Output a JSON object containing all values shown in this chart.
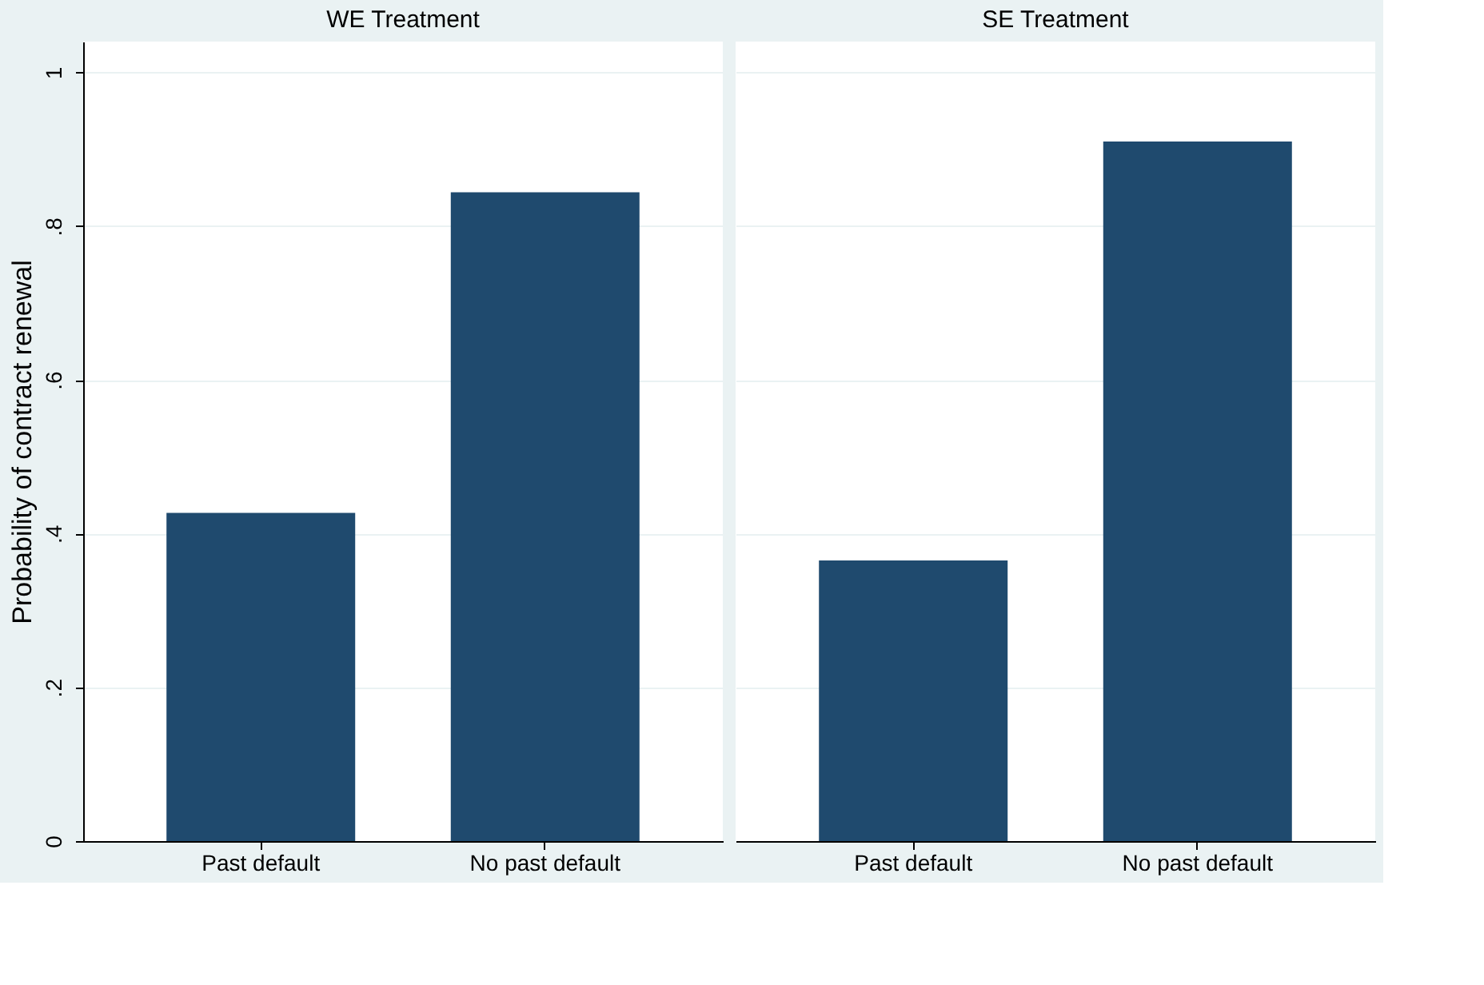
{
  "chart_data": [
    {
      "type": "bar",
      "title": "WE Treatment",
      "ylabel": "Probability of contract renewal",
      "categories": [
        "Past default",
        "No past default"
      ],
      "values": [
        0.427,
        0.844
      ],
      "color": "#1f4a6e",
      "ylim": [
        0,
        1.04
      ],
      "yticks": [
        0,
        {
          "value": 0.2,
          "label": ".2"
        },
        {
          "value": 0.4,
          "label": ".4"
        },
        {
          "value": 0.6,
          "label": ".6"
        },
        {
          "value": 0.8,
          "label": ".8"
        },
        1
      ],
      "grid": "y"
    },
    {
      "type": "bar",
      "title": "SE Treatment",
      "categories": [
        "Past default",
        "No past default"
      ],
      "values": [
        0.365,
        0.91
      ],
      "color": "#1f4a6e",
      "ylim": [
        0,
        1.04
      ],
      "yticks": [
        {
          "value": 0,
          "label": null
        },
        {
          "value": 0.2,
          "label": null
        },
        {
          "value": 0.4,
          "label": null
        },
        {
          "value": 0.6,
          "label": null
        },
        {
          "value": 0.8,
          "label": null
        },
        {
          "value": 1,
          "label": null
        }
      ],
      "grid": "y",
      "tick_labels": "x"
    }
  ]
}
